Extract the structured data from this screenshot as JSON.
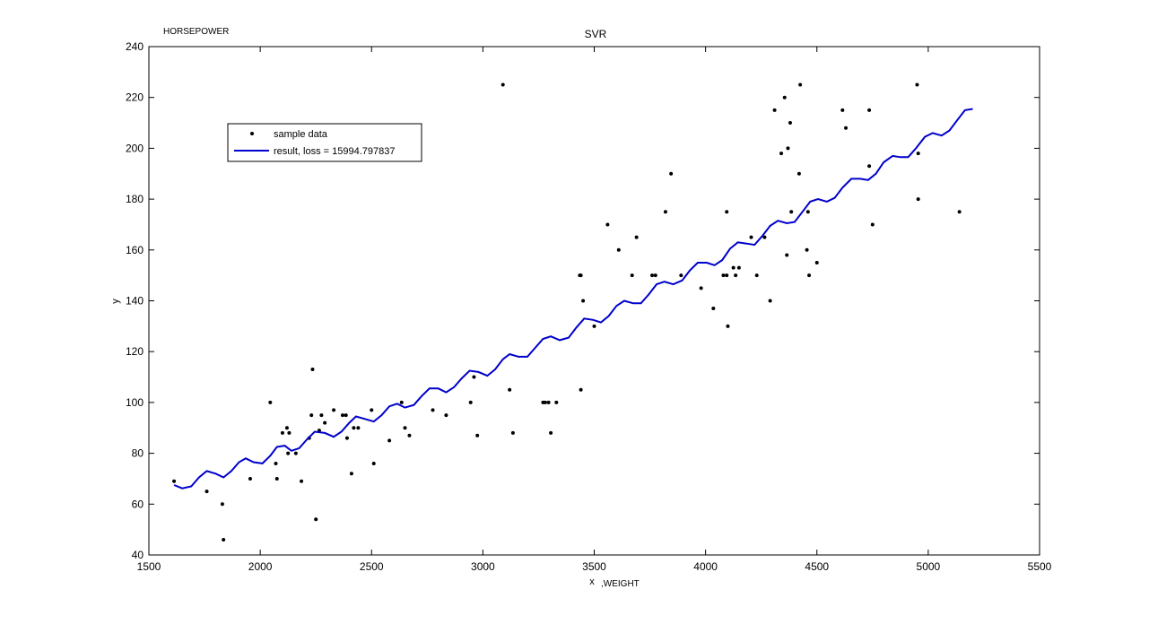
{
  "figure": {
    "corner_label": "HORSEPOWER",
    "x_suffix_label": ",WEIGHT"
  },
  "chart_data": {
    "type": "scatter",
    "title": "SVR",
    "xlabel": "x",
    "ylabel": "y",
    "xlim": [
      1500,
      5500
    ],
    "ylim": [
      40,
      240
    ],
    "xticks": [
      1500,
      2000,
      2500,
      3000,
      3500,
      4000,
      4500,
      5000,
      5500
    ],
    "yticks": [
      40,
      60,
      80,
      100,
      120,
      140,
      160,
      180,
      200,
      220,
      240
    ],
    "grid": false,
    "legend_position": "upper-left",
    "colors": {
      "points": "#000000",
      "line": "#0000cc"
    },
    "series": [
      {
        "name": "sample data",
        "type": "scatter",
        "points": [
          [
            1613,
            69
          ],
          [
            1760,
            65
          ],
          [
            1830,
            60
          ],
          [
            1835,
            46
          ],
          [
            1955,
            70
          ],
          [
            2045,
            100
          ],
          [
            2070,
            76
          ],
          [
            2075,
            70
          ],
          [
            2100,
            88
          ],
          [
            2120,
            90
          ],
          [
            2125,
            80
          ],
          [
            2130,
            88
          ],
          [
            2160,
            80
          ],
          [
            2185,
            69
          ],
          [
            2220,
            86
          ],
          [
            2230,
            95
          ],
          [
            2235,
            113
          ],
          [
            2250,
            54
          ],
          [
            2265,
            89
          ],
          [
            2275,
            95
          ],
          [
            2290,
            92
          ],
          [
            2330,
            97
          ],
          [
            2370,
            95
          ],
          [
            2385,
            95
          ],
          [
            2390,
            86
          ],
          [
            2410,
            72
          ],
          [
            2420,
            90
          ],
          [
            2440,
            90
          ],
          [
            2500,
            97
          ],
          [
            2510,
            76
          ],
          [
            2580,
            85
          ],
          [
            2635,
            100
          ],
          [
            2650,
            90
          ],
          [
            2670,
            87
          ],
          [
            2775,
            97
          ],
          [
            2835,
            95
          ],
          [
            2945,
            100
          ],
          [
            2960,
            110
          ],
          [
            2975,
            87
          ],
          [
            3090,
            225
          ],
          [
            3120,
            105
          ],
          [
            3135,
            88
          ],
          [
            3270,
            100
          ],
          [
            3280,
            100
          ],
          [
            3295,
            100
          ],
          [
            3305,
            88
          ],
          [
            3330,
            100
          ],
          [
            3435,
            150
          ],
          [
            3440,
            150
          ],
          [
            3440,
            105
          ],
          [
            3450,
            140
          ],
          [
            3500,
            130
          ],
          [
            3560,
            170
          ],
          [
            3610,
            160
          ],
          [
            3670,
            150
          ],
          [
            3690,
            165
          ],
          [
            3760,
            150
          ],
          [
            3775,
            150
          ],
          [
            3820,
            175
          ],
          [
            3845,
            190
          ],
          [
            3890,
            150
          ],
          [
            3980,
            145
          ],
          [
            4035,
            137
          ],
          [
            4080,
            150
          ],
          [
            4095,
            150
          ],
          [
            4095,
            175
          ],
          [
            4100,
            130
          ],
          [
            4125,
            153
          ],
          [
            4135,
            150
          ],
          [
            4150,
            153
          ],
          [
            4205,
            165
          ],
          [
            4230,
            150
          ],
          [
            4265,
            165
          ],
          [
            4290,
            140
          ],
          [
            4310,
            215
          ],
          [
            4340,
            198
          ],
          [
            4355,
            220
          ],
          [
            4365,
            158
          ],
          [
            4370,
            200
          ],
          [
            4380,
            210
          ],
          [
            4385,
            175
          ],
          [
            4420,
            190
          ],
          [
            4425,
            225
          ],
          [
            4455,
            160
          ],
          [
            4460,
            175
          ],
          [
            4465,
            150
          ],
          [
            4500,
            155
          ],
          [
            4615,
            215
          ],
          [
            4630,
            208
          ],
          [
            4735,
            193
          ],
          [
            4735,
            215
          ],
          [
            4750,
            170
          ],
          [
            4950,
            225
          ],
          [
            4955,
            198
          ],
          [
            4955,
            180
          ],
          [
            5140,
            175
          ]
        ]
      },
      {
        "name": "result, loss = 15994.797837",
        "type": "line",
        "points": [
          [
            1613,
            67.5
          ],
          [
            1650,
            66.2
          ],
          [
            1690,
            67
          ],
          [
            1725,
            70.5
          ],
          [
            1760,
            73
          ],
          [
            1800,
            72
          ],
          [
            1835,
            70.5
          ],
          [
            1870,
            73
          ],
          [
            1905,
            76.5
          ],
          [
            1935,
            78
          ],
          [
            1970,
            76.5
          ],
          [
            2010,
            76
          ],
          [
            2045,
            79
          ],
          [
            2075,
            82.5
          ],
          [
            2110,
            83
          ],
          [
            2140,
            81
          ],
          [
            2175,
            82
          ],
          [
            2210,
            85.5
          ],
          [
            2245,
            88.5
          ],
          [
            2290,
            88
          ],
          [
            2330,
            86.5
          ],
          [
            2365,
            88.5
          ],
          [
            2400,
            92
          ],
          [
            2430,
            94.5
          ],
          [
            2470,
            93.5
          ],
          [
            2510,
            92.5
          ],
          [
            2545,
            95
          ],
          [
            2580,
            98.5
          ],
          [
            2615,
            99.5
          ],
          [
            2650,
            98
          ],
          [
            2690,
            99
          ],
          [
            2725,
            102.5
          ],
          [
            2760,
            105.5
          ],
          [
            2800,
            105.5
          ],
          [
            2835,
            104
          ],
          [
            2870,
            106
          ],
          [
            2905,
            109.5
          ],
          [
            2940,
            112.5
          ],
          [
            2980,
            112
          ],
          [
            3020,
            110.5
          ],
          [
            3055,
            113
          ],
          [
            3090,
            117
          ],
          [
            3120,
            119
          ],
          [
            3160,
            118
          ],
          [
            3200,
            118
          ],
          [
            3235,
            121.5
          ],
          [
            3270,
            125
          ],
          [
            3305,
            126
          ],
          [
            3345,
            124.5
          ],
          [
            3385,
            125.5
          ],
          [
            3420,
            129.5
          ],
          [
            3455,
            133
          ],
          [
            3495,
            132.5
          ],
          [
            3530,
            131.5
          ],
          [
            3565,
            134
          ],
          [
            3600,
            138
          ],
          [
            3635,
            140
          ],
          [
            3675,
            139
          ],
          [
            3710,
            139
          ],
          [
            3745,
            142.5
          ],
          [
            3780,
            146.5
          ],
          [
            3815,
            147.5
          ],
          [
            3855,
            146.5
          ],
          [
            3895,
            148
          ],
          [
            3930,
            152
          ],
          [
            3965,
            155
          ],
          [
            4005,
            155
          ],
          [
            4040,
            154
          ],
          [
            4075,
            156
          ],
          [
            4110,
            160.5
          ],
          [
            4145,
            163
          ],
          [
            4185,
            162.5
          ],
          [
            4220,
            162
          ],
          [
            4255,
            165.5
          ],
          [
            4290,
            169.5
          ],
          [
            4325,
            171.5
          ],
          [
            4365,
            170.5
          ],
          [
            4400,
            171
          ],
          [
            4435,
            175
          ],
          [
            4470,
            179
          ],
          [
            4505,
            180
          ],
          [
            4545,
            179
          ],
          [
            4580,
            180.5
          ],
          [
            4615,
            184.5
          ],
          [
            4655,
            188
          ],
          [
            4695,
            188
          ],
          [
            4730,
            187.5
          ],
          [
            4765,
            190
          ],
          [
            4800,
            194.5
          ],
          [
            4840,
            197
          ],
          [
            4875,
            196.5
          ],
          [
            4910,
            196.5
          ],
          [
            4945,
            200
          ],
          [
            4985,
            204.5
          ],
          [
            5020,
            206
          ],
          [
            5060,
            205
          ],
          [
            5095,
            207
          ],
          [
            5130,
            211
          ],
          [
            5165,
            215
          ],
          [
            5200,
            215.5
          ]
        ]
      }
    ]
  }
}
